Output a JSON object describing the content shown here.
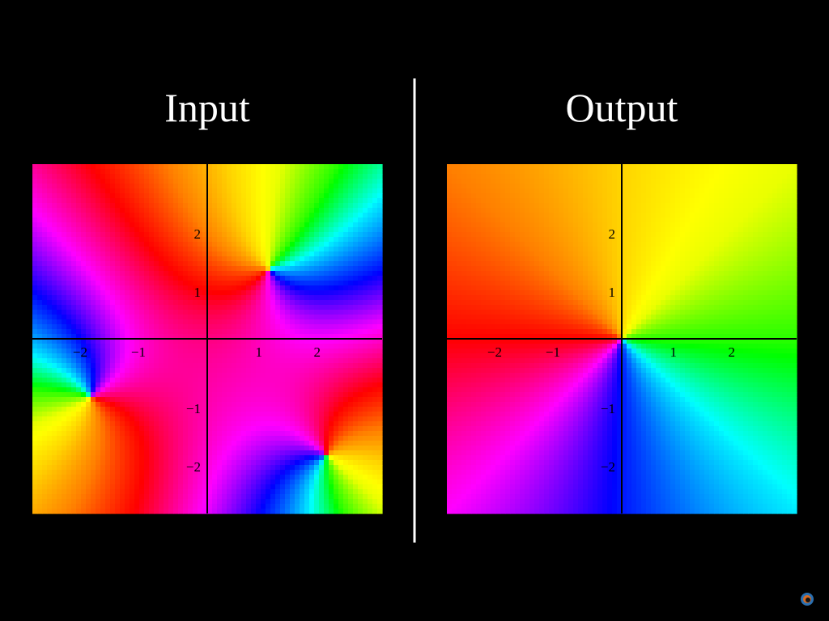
{
  "panels": [
    {
      "title": "Input",
      "xlim": [
        -3,
        3
      ],
      "ylim": [
        -3,
        3
      ],
      "xticks": [
        {
          "value": -2,
          "label": "−2"
        },
        {
          "value": -1,
          "label": "−1"
        },
        1,
        2
      ],
      "yticks": [
        2,
        1,
        {
          "value": -1,
          "label": "−1"
        },
        {
          "value": -2,
          "label": "−2"
        }
      ]
    },
    {
      "title": "Output",
      "xlim": [
        -3,
        3
      ],
      "ylim": [
        -3,
        3
      ],
      "xticks": [
        {
          "value": -2,
          "label": "−2"
        },
        {
          "value": -1,
          "label": "−1"
        },
        1,
        2
      ],
      "yticks": [
        2,
        1,
        {
          "value": -1,
          "label": "−1"
        },
        {
          "value": -2,
          "label": "−2"
        }
      ]
    }
  ]
}
